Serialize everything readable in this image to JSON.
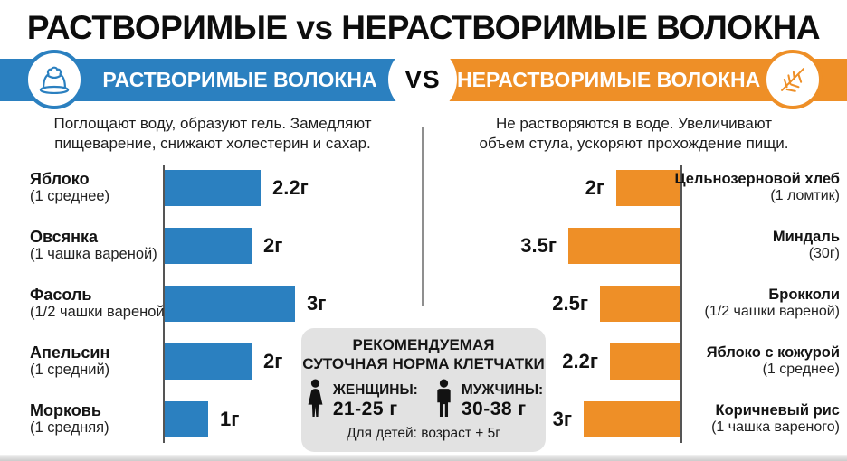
{
  "page_title": "РАСТВОРИМЫЕ vs НЕРАСТВОРИМЫЕ ВОЛОКНА",
  "vs_label": "VS",
  "colors": {
    "soluble_blue": "#2b80c0",
    "insoluble_orange": "#ee8f27",
    "card_gray": "#e2e2e2"
  },
  "soluble": {
    "banner_label": "РАСТВОРИМЫЕ ВОЛОКНА",
    "icon": "jelly-icon",
    "description": "Поглощают воду, образуют гель. Замедляют пищеварение, снижают холестерин и сахар.",
    "items": [
      {
        "name": "Яблоко",
        "portion": "(1 среднее)",
        "value": 2.2,
        "value_label": "2.2г"
      },
      {
        "name": "Овсянка",
        "portion": "(1 чашка вареной)",
        "value": 2,
        "value_label": "2г"
      },
      {
        "name": "Фасоль",
        "portion": "(1/2 чашки вареной)",
        "value": 3,
        "value_label": "3г"
      },
      {
        "name": "Апельсин",
        "portion": "(1 средний)",
        "value": 2,
        "value_label": "2г"
      },
      {
        "name": "Морковь",
        "portion": "(1 средняя)",
        "value": 1,
        "value_label": "1г"
      }
    ]
  },
  "insoluble": {
    "banner_label": "НЕРАСТВОРИМЫЕ ВОЛОКНА",
    "icon": "wheat-icon",
    "description": "Не растворяются в воде. Увеличивают объем стула, ускоряют прохождение пищи.",
    "items": [
      {
        "name": "Цельнозерновой хлеб",
        "portion": "(1 ломтик)",
        "value": 2,
        "value_label": "2г"
      },
      {
        "name": "Миндаль",
        "portion": "(30г)",
        "value": 3.5,
        "value_label": "3.5г"
      },
      {
        "name": "Брокколи",
        "portion": "(1/2 чашки вареной)",
        "value": 2.5,
        "value_label": "2.5г"
      },
      {
        "name": "Яблоко с кожурой",
        "portion": "(1 среднее)",
        "value": 2.2,
        "value_label": "2.2г"
      },
      {
        "name": "Коричневый рис",
        "portion": "(1 чашка вареного)",
        "value": 3,
        "value_label": "3г"
      }
    ]
  },
  "recommendation": {
    "title_line1": "РЕКОМЕНДУЕМАЯ",
    "title_line2": "СУТОЧНАЯ НОРМА КЛЕТЧАТКИ",
    "women_icon": "woman-icon",
    "women_label": "ЖЕНЩИНЫ:",
    "women_value": "21-25 г",
    "men_icon": "man-icon",
    "men_label": "МУЖЧИНЫ:",
    "men_value": "30-38 г",
    "children_note": "Для детей: возраст + 5г"
  },
  "chart_data": [
    {
      "type": "bar",
      "orientation": "horizontal",
      "title": "РАСТВОРИМЫЕ ВОЛОКНА",
      "categories": [
        "Яблоко (1 среднее)",
        "Овсянка (1 чашка вареной)",
        "Фасоль (1/2 чашки вареной)",
        "Апельсин (1 средний)",
        "Морковь (1 средняя)"
      ],
      "values": [
        2.2,
        2,
        3,
        2,
        1
      ],
      "unit": "г",
      "bar_color": "#2b80c0",
      "xlim": [
        0,
        3.5
      ],
      "data_labels": [
        "2.2г",
        "2г",
        "3г",
        "2г",
        "1г"
      ]
    },
    {
      "type": "bar",
      "orientation": "horizontal-mirrored",
      "title": "НЕРАСТВОРИМЫЕ ВОЛОКНА",
      "categories": [
        "Цельнозерновой хлеб (1 ломтик)",
        "Миндаль (30г)",
        "Брокколи (1/2 чашки вареной)",
        "Яблоко с кожурой (1 среднее)",
        "Коричневый рис (1 чашка вареного)"
      ],
      "values": [
        2,
        3.5,
        2.5,
        2.2,
        3
      ],
      "unit": "г",
      "bar_color": "#ee8f27",
      "xlim": [
        0,
        3.5
      ],
      "data_labels": [
        "2г",
        "3.5г",
        "2.5г",
        "2.2г",
        "3г"
      ]
    }
  ]
}
